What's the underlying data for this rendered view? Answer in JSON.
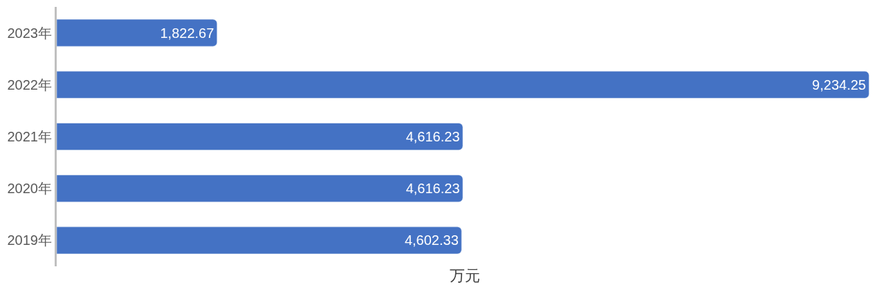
{
  "chart_data": {
    "type": "bar",
    "orientation": "horizontal",
    "xlabel": "万元",
    "categories": [
      "2023年",
      "2022年",
      "2021年",
      "2020年",
      "2019年"
    ],
    "values": [
      1822.67,
      9234.25,
      4616.23,
      4616.23,
      4602.33
    ],
    "value_labels": [
      "1,822.67",
      "9,234.25",
      "4,616.23",
      "4,616.23",
      "4,602.33"
    ],
    "color": "#4472c4",
    "legend": false
  }
}
